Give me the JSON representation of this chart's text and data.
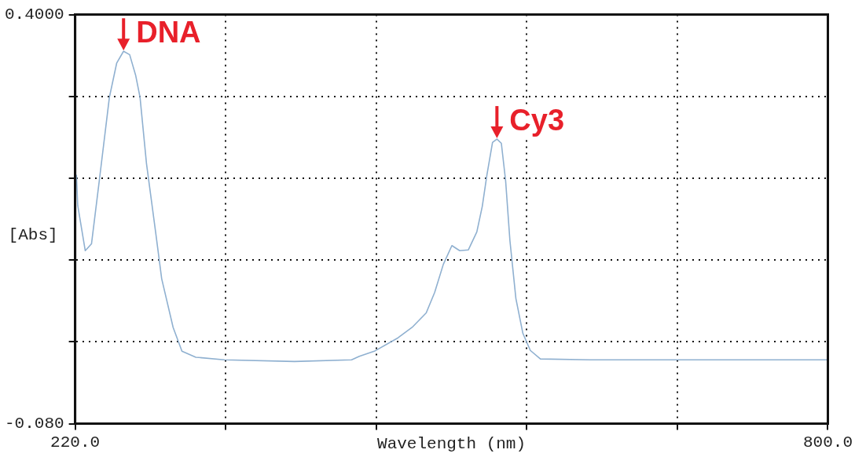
{
  "chart_data": {
    "type": "line",
    "xlabel": "Wavelength (nm)",
    "ylabel": "[Abs]",
    "xlim": [
      220,
      800
    ],
    "xticks": [
      {
        "value": 220,
        "label": "220.0"
      },
      {
        "value": 336,
        "label": null
      },
      {
        "value": 452,
        "label": null
      },
      {
        "value": 568,
        "label": null
      },
      {
        "value": 684,
        "label": null
      },
      {
        "value": 800,
        "label": "800.0"
      }
    ],
    "ylim": [
      -0.08,
      0.4
    ],
    "yticks": [
      {
        "value": -0.08,
        "label": "-0.080"
      },
      {
        "value": 0.016,
        "label": null
      },
      {
        "value": 0.112,
        "label": null
      },
      {
        "value": 0.208,
        "label": null
      },
      {
        "value": 0.304,
        "label": null
      },
      {
        "value": 0.4,
        "label": "0.4000"
      }
    ],
    "grid": true,
    "legend": false,
    "marker": "none",
    "line_style": "solid",
    "series": [
      {
        "color": "#8fb0d0",
        "x": [
          221,
          222,
          227.8,
          232.6,
          238.6,
          246.4,
          252,
          257.3,
          262,
          266.6,
          270,
          275,
          282,
          286.7,
          295.5,
          302.3,
          313,
          335,
          389,
          433,
          439,
          450.5,
          468,
          479.6,
          490.5,
          497,
          503.7,
          510.3,
          516.3,
          523,
          529.5,
          533.7,
          537.3,
          541.6,
          545,
          548.4,
          551.7,
          555,
          559.6,
          565,
          570.7,
          578.5,
          617,
          684,
          788.5,
          800
        ],
        "values": [
          0.212,
          0.176,
          0.123,
          0.131,
          0.205,
          0.303,
          0.343,
          0.357,
          0.353,
          0.329,
          0.303,
          0.225,
          0.145,
          0.09,
          0.033,
          0.005,
          -0.002,
          -0.005,
          -0.007,
          -0.005,
          -0.001,
          0.005,
          0.02,
          0.033,
          0.05,
          0.074,
          0.107,
          0.129,
          0.123,
          0.124,
          0.145,
          0.175,
          0.212,
          0.25,
          0.254,
          0.249,
          0.205,
          0.135,
          0.067,
          0.026,
          0.006,
          -0.004,
          -0.005,
          -0.005,
          -0.005,
          -0.005
        ]
      }
    ],
    "annotations": [
      {
        "text": "DNA",
        "x": 257.3,
        "y": 0.357
      },
      {
        "text": "Cy3",
        "x": 545,
        "y": 0.254
      }
    ]
  }
}
